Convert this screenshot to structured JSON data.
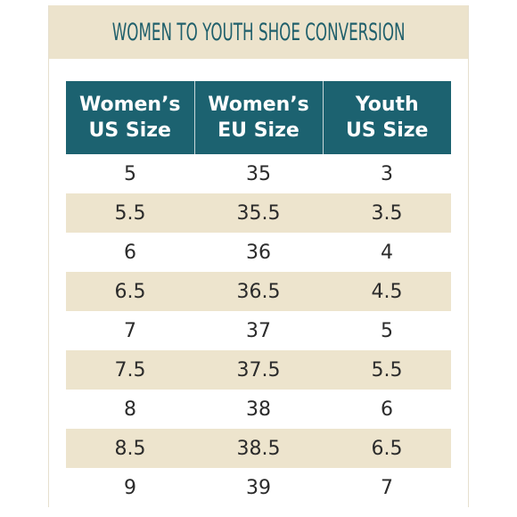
{
  "title": "WOMEN TO YOUTH SHOE CONVERSION",
  "colors": {
    "accent_teal": "#1c6270",
    "banner_bg": "#ece3cc",
    "stripe_bg": "#ede4cd",
    "title_color": "#1f5f6b"
  },
  "table": {
    "headers": [
      [
        "Women’s",
        "US Size"
      ],
      [
        "Women’s",
        "EU Size"
      ],
      [
        "Youth",
        "US Size"
      ]
    ],
    "rows": [
      [
        "5",
        "35",
        "3"
      ],
      [
        "5.5",
        "35.5",
        "3.5"
      ],
      [
        "6",
        "36",
        "4"
      ],
      [
        "6.5",
        "36.5",
        "4.5"
      ],
      [
        "7",
        "37",
        "5"
      ],
      [
        "7.5",
        "37.5",
        "5.5"
      ],
      [
        "8",
        "38",
        "6"
      ],
      [
        "8.5",
        "38.5",
        "6.5"
      ],
      [
        "9",
        "39",
        "7"
      ]
    ]
  }
}
